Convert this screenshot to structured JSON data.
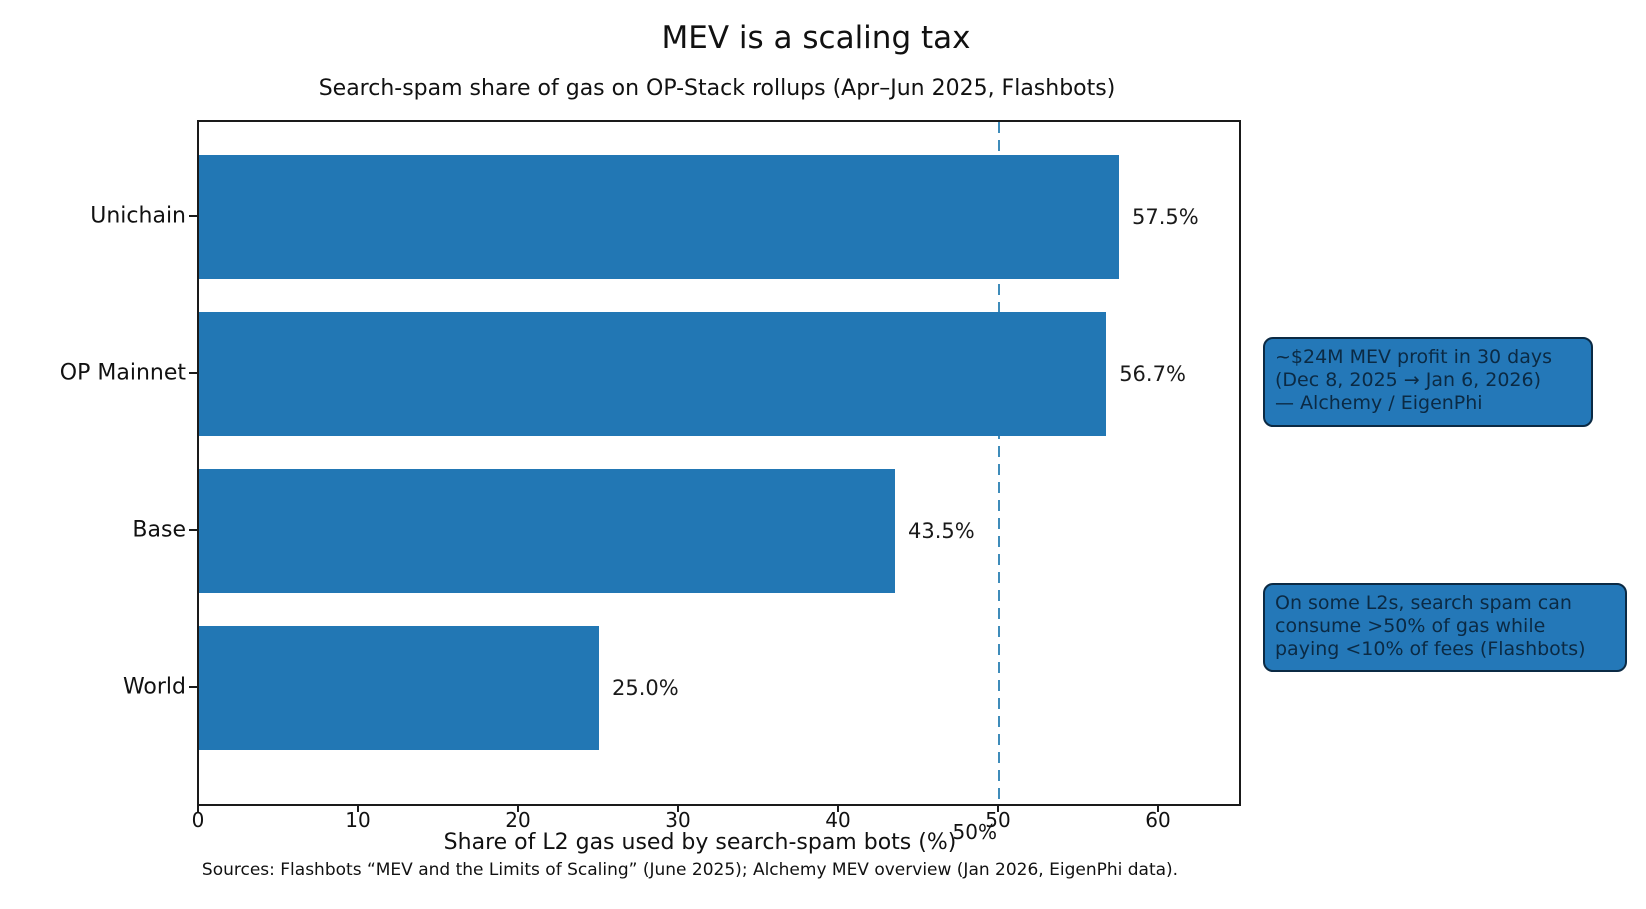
{
  "chart": {
    "title": "MEV is a scaling tax",
    "subtitle": "Search-spam share of gas on OP-Stack rollups (Apr–Jun 2025, Flashbots)",
    "xlabel": "Share of L2 gas used by search-spam bots (%)",
    "footer": "Sources: Flashbots “MEV and the Limits of Scaling” (June 2025); Alchemy MEV overview (Jan 2026, EigenPhi data)."
  },
  "chart_data": {
    "type": "bar",
    "orientation": "horizontal",
    "title": "MEV is a scaling tax",
    "subtitle": "Search-spam share of gas on OP-Stack rollups (Apr–Jun 2025, Flashbots)",
    "xlabel": "Share of L2 gas used by search-spam bots (%)",
    "categories": [
      "Unichain",
      "OP Mainnet",
      "Base",
      "World"
    ],
    "values": [
      57.5,
      56.7,
      43.5,
      25.0
    ],
    "value_labels": [
      "57.5%",
      "56.7%",
      "43.5%",
      "25.0%"
    ],
    "xlim": [
      0,
      65
    ],
    "xticks": [
      0,
      10,
      20,
      30,
      40,
      50,
      60
    ],
    "grid": false,
    "legend": null,
    "bar_color": "#2277b4",
    "refline": {
      "x": 50,
      "label": "50%",
      "color": "#3f8cba",
      "style": "dashed"
    },
    "annotations": [
      {
        "text": "~$24M MEV profit in 30 days\n(Dec 8, 2025 → Jan 6, 2026)\n— Alchemy / EigenPhi",
        "fill": "#2478b8",
        "border": "#0b2a44"
      },
      {
        "text": "On some L2s, search spam can\nconsume >50% of gas while\npaying <10% of fees (Flashbots)",
        "fill": "#2478b8",
        "border": "#0b2a44"
      }
    ],
    "footer": "Sources: Flashbots “MEV and the Limits of Scaling” (June 2025); Alchemy MEV overview (Jan 2026, EigenPhi data)."
  }
}
